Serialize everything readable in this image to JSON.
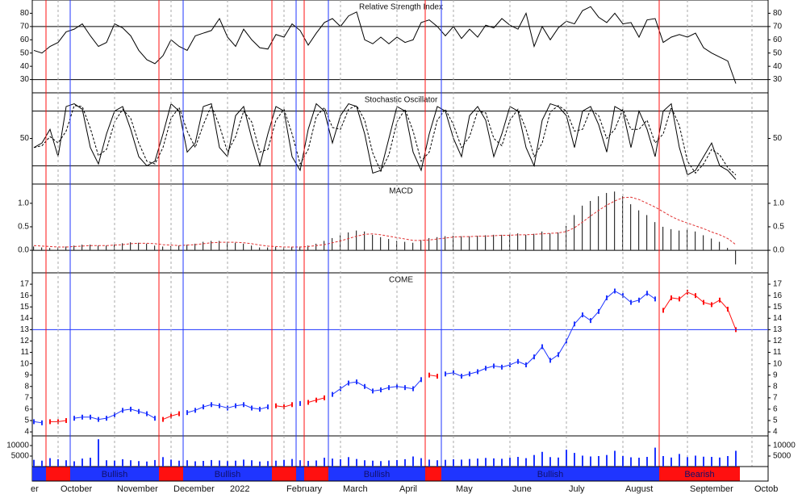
{
  "chart_data": [
    {
      "type": "line",
      "title": "Relative Strength Index",
      "ylim": [
        20,
        90
      ],
      "yticks": [
        30,
        40,
        50,
        60,
        70,
        80
      ],
      "levels": [
        70,
        30
      ],
      "series": [
        {
          "color": "#000000",
          "values": [
            52,
            50,
            55,
            58,
            66,
            68,
            72,
            63,
            55,
            58,
            72,
            69,
            63,
            52,
            45,
            42,
            48,
            60,
            55,
            52,
            63,
            65,
            67,
            76,
            62,
            55,
            68,
            60,
            54,
            53,
            64,
            62,
            72,
            67,
            56,
            65,
            73,
            76,
            70,
            78,
            81,
            60,
            57,
            62,
            57,
            62,
            58,
            60,
            73,
            75,
            70,
            63,
            70,
            61,
            68,
            62,
            71,
            69,
            76,
            71,
            68,
            80,
            55,
            70,
            60,
            69,
            74,
            72,
            82,
            85,
            77,
            73,
            80,
            72,
            73,
            62,
            75,
            76,
            58,
            62,
            64,
            62,
            65,
            54,
            50,
            47,
            44,
            27,
            null,
            null
          ]
        }
      ]
    },
    {
      "type": "line",
      "title": "Stochastic Oscillator",
      "ylim": [
        0,
        100
      ],
      "yticks": [
        50
      ],
      "levels": [
        80,
        20
      ],
      "series": [
        {
          "color": "#000000",
          "values": [
            40,
            45,
            60,
            30,
            85,
            88,
            82,
            40,
            22,
            55,
            80,
            85,
            60,
            30,
            20,
            25,
            55,
            88,
            80,
            35,
            45,
            85,
            88,
            40,
            30,
            75,
            85,
            50,
            20,
            55,
            85,
            80,
            30,
            15,
            60,
            88,
            80,
            45,
            75,
            88,
            85,
            55,
            12,
            15,
            50,
            85,
            80,
            35,
            15,
            55,
            85,
            80,
            50,
            30,
            75,
            85,
            70,
            30,
            55,
            85,
            80,
            40,
            20,
            70,
            88,
            85,
            75,
            40,
            80,
            85,
            65,
            35,
            85,
            80,
            40,
            80,
            60,
            30,
            80,
            88,
            40,
            10,
            15,
            30,
            45,
            20,
            15,
            5,
            null,
            null
          ]
        },
        {
          "color": "#000000",
          "dash": true,
          "values": [
            40,
            42,
            52,
            45,
            58,
            86,
            85,
            61,
            31,
            38,
            68,
            82,
            72,
            45,
            25,
            22,
            40,
            72,
            84,
            58,
            40,
            65,
            86,
            64,
            35,
            52,
            80,
            68,
            35,
            38,
            70,
            82,
            55,
            22,
            38,
            74,
            84,
            62,
            60,
            82,
            86,
            70,
            34,
            14,
            32,
            68,
            82,
            58,
            25,
            35,
            70,
            82,
            65,
            40,
            52,
            80,
            78,
            50,
            42,
            70,
            82,
            60,
            30,
            45,
            79,
            86,
            80,
            58,
            60,
            82,
            75,
            50,
            60,
            82,
            60,
            60,
            70,
            45,
            55,
            84,
            64,
            25,
            12,
            22,
            38,
            32,
            18,
            10,
            null,
            null
          ]
        }
      ]
    },
    {
      "type": "bar",
      "title": "MACD",
      "ylim": [
        -0.48,
        1.41
      ],
      "yticks": [
        {
          "value": 1,
          "label": "1.0"
        },
        {
          "value": 0.5,
          "label": "0.5"
        },
        {
          "value": 0,
          "label": "0.0"
        }
      ],
      "levels": [
        0
      ],
      "series": [
        {
          "color": "#333333",
          "kind": "bar",
          "values": [
            0.08,
            0.06,
            0.05,
            0.06,
            0.08,
            0.1,
            0.12,
            0.12,
            0.1,
            0.1,
            0.12,
            0.15,
            0.17,
            0.16,
            0.14,
            0.1,
            0.08,
            0.09,
            0.1,
            0.12,
            0.14,
            0.18,
            0.2,
            0.2,
            0.18,
            0.16,
            0.14,
            0.1,
            0.06,
            0.06,
            0.07,
            0.06,
            0.07,
            0.08,
            0.1,
            0.14,
            0.2,
            0.26,
            0.32,
            0.38,
            0.42,
            0.4,
            0.33,
            0.28,
            0.24,
            0.2,
            0.18,
            0.16,
            0.22,
            0.26,
            0.28,
            0.3,
            0.31,
            0.3,
            0.3,
            0.31,
            0.32,
            0.33,
            0.33,
            0.34,
            0.36,
            0.33,
            0.35,
            0.4,
            0.36,
            0.38,
            0.52,
            0.75,
            0.95,
            1.05,
            1.15,
            1.22,
            1.25,
            1.15,
            0.98,
            0.85,
            0.75,
            0.6,
            0.5,
            0.45,
            0.42,
            0.44,
            0.4,
            0.32,
            0.25,
            0.18,
            0.05,
            -0.3,
            null,
            null
          ]
        },
        {
          "color": "#e03030",
          "kind": "line",
          "dash": true,
          "values": [
            0.1,
            0.09,
            0.08,
            0.07,
            0.07,
            0.08,
            0.09,
            0.1,
            0.1,
            0.1,
            0.11,
            0.12,
            0.14,
            0.15,
            0.15,
            0.14,
            0.12,
            0.11,
            0.1,
            0.11,
            0.12,
            0.14,
            0.16,
            0.17,
            0.17,
            0.17,
            0.16,
            0.14,
            0.11,
            0.09,
            0.08,
            0.07,
            0.07,
            0.07,
            0.08,
            0.1,
            0.12,
            0.16,
            0.2,
            0.25,
            0.3,
            0.34,
            0.35,
            0.33,
            0.3,
            0.27,
            0.24,
            0.21,
            0.21,
            0.22,
            0.24,
            0.26,
            0.28,
            0.29,
            0.29,
            0.3,
            0.3,
            0.31,
            0.32,
            0.32,
            0.33,
            0.33,
            0.34,
            0.35,
            0.36,
            0.37,
            0.4,
            0.48,
            0.6,
            0.73,
            0.85,
            0.96,
            1.05,
            1.12,
            1.13,
            1.08,
            1.0,
            0.92,
            0.82,
            0.72,
            0.64,
            0.58,
            0.52,
            0.46,
            0.39,
            0.33,
            0.25,
            0.12,
            null,
            null
          ]
        }
      ]
    },
    {
      "type": "line",
      "title": "COME",
      "ylim": [
        3.65,
        18
      ],
      "yticks": [
        4,
        5,
        6,
        7,
        8,
        9,
        10,
        11,
        12,
        13,
        14,
        15,
        16,
        17
      ],
      "markers": true,
      "signal_band": true,
      "last_price_line": true,
      "categories": [
        "er",
        null,
        null,
        "October",
        null,
        null,
        null,
        null,
        null,
        null,
        "November",
        null,
        null,
        null,
        null,
        null,
        null,
        "December",
        null,
        null,
        null,
        null,
        null,
        null,
        "2022",
        null,
        null,
        null,
        null,
        null,
        null,
        "February",
        null,
        null,
        null,
        null,
        null,
        null,
        "March",
        null,
        null,
        null,
        null,
        null,
        null,
        "April",
        null,
        null,
        null,
        null,
        null,
        null,
        "May",
        null,
        null,
        null,
        null,
        null,
        null,
        "June",
        null,
        null,
        null,
        null,
        null,
        null,
        "July",
        null,
        null,
        null,
        null,
        null,
        null,
        "August",
        null,
        null,
        null,
        null,
        null,
        null,
        null,
        "September",
        null,
        null,
        null,
        null,
        null,
        null,
        null,
        "Octob"
      ],
      "series": [
        {
          "name": "Bullish",
          "color": "#1f35ff",
          "values": [
            4.9,
            4.8,
            null,
            null,
            null,
            5.2,
            5.3,
            5.3,
            5.1,
            5.2,
            5.5,
            5.9,
            6.0,
            5.8,
            5.6,
            5.2,
            null,
            null,
            null,
            5.7,
            5.9,
            6.2,
            6.4,
            6.3,
            6.1,
            6.3,
            6.4,
            6.1,
            6.0,
            6.2,
            null,
            null,
            null,
            6.5,
            null,
            null,
            null,
            7.3,
            7.8,
            8.3,
            8.4,
            8.0,
            7.6,
            7.7,
            7.9,
            8.0,
            7.9,
            7.8,
            8.6,
            null,
            null,
            9.1,
            9.2,
            8.9,
            9.1,
            9.3,
            9.6,
            9.8,
            9.7,
            9.9,
            10.2,
            9.9,
            10.6,
            11.5,
            10.3,
            10.8,
            12.0,
            13.5,
            14.3,
            13.8,
            14.6,
            15.8,
            16.4,
            16.0,
            15.4,
            15.6,
            16.2,
            15.7,
            null,
            null,
            null,
            null,
            null,
            null,
            null,
            null,
            null,
            null,
            null,
            null
          ]
        },
        {
          "name": "Bearish",
          "color": "#ff1010",
          "values": [
            null,
            null,
            4.9,
            4.9,
            5.0,
            null,
            null,
            null,
            null,
            null,
            null,
            null,
            null,
            null,
            null,
            null,
            5.1,
            5.4,
            5.6,
            null,
            null,
            null,
            null,
            null,
            null,
            null,
            null,
            null,
            null,
            null,
            6.3,
            6.2,
            6.4,
            null,
            6.6,
            6.8,
            7.0,
            null,
            null,
            null,
            null,
            null,
            null,
            null,
            null,
            null,
            null,
            null,
            null,
            9.0,
            8.9,
            null,
            null,
            null,
            null,
            null,
            null,
            null,
            null,
            null,
            null,
            null,
            null,
            null,
            null,
            null,
            null,
            null,
            null,
            null,
            null,
            null,
            null,
            null,
            null,
            null,
            null,
            null,
            14.7,
            15.8,
            15.7,
            16.3,
            16.0,
            15.4,
            15.2,
            15.6,
            14.8,
            13.0,
            null,
            null
          ]
        }
      ]
    },
    {
      "type": "bar",
      "ylim": [
        0,
        14600
      ],
      "yticks": [
        5000,
        10000
      ],
      "series": [
        {
          "color": "#1f35ff",
          "kind": "bar",
          "values": [
            3200,
            2800,
            4000,
            3500,
            3000,
            2500,
            3800,
            4200,
            13000,
            3000,
            2800,
            3500,
            3000,
            2600,
            2400,
            3100,
            4500,
            3300,
            2800,
            3000,
            2500,
            2700,
            3100,
            2900,
            2600,
            2800,
            3300,
            3000,
            2400,
            2600,
            2800,
            3200,
            3600,
            3000,
            2700,
            2900,
            4200,
            3800,
            3500,
            4500,
            3600,
            3000,
            2800,
            2600,
            2900,
            3100,
            3500,
            4800,
            4000,
            3300,
            3000,
            3200,
            3500,
            3300,
            3600,
            3800,
            4100,
            3900,
            3700,
            4200,
            4600,
            4000,
            5500,
            7000,
            4500,
            4300,
            8000,
            6500,
            5200,
            4800,
            5000,
            5500,
            7500,
            5000,
            4400,
            4200,
            4600,
            9000,
            5000,
            4300,
            6000,
            4500,
            5200,
            4700,
            4600,
            4300,
            5000,
            7500,
            null,
            null
          ]
        }
      ]
    }
  ]
}
